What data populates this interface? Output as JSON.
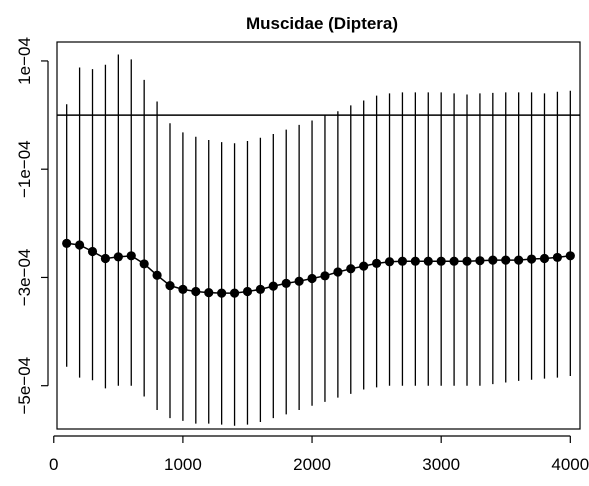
{
  "chart_data": {
    "type": "scatter",
    "title": "Muscidae (Diptera)",
    "xlabel": "",
    "ylabel": "",
    "xlim": [
      25,
      4075
    ],
    "ylim": [
      -0.00058,
      0.000135
    ],
    "grid": false,
    "legend": "none",
    "reference_line_y": 0,
    "x_ticks": [
      {
        "value": 0,
        "label": "0"
      },
      {
        "value": 1000,
        "label": "1000"
      },
      {
        "value": 2000,
        "label": "2000"
      },
      {
        "value": 3000,
        "label": "3000"
      },
      {
        "value": 4000,
        "label": "4000"
      }
    ],
    "y_ticks": [
      {
        "value": 0.0001,
        "label": "1e−04"
      },
      {
        "value": -0.0001,
        "label": "−1e−04"
      },
      {
        "value": -0.0003,
        "label": "−3e−04"
      },
      {
        "value": -0.0005,
        "label": "−5e−04"
      }
    ],
    "x": [
      100,
      200,
      300,
      400,
      500,
      600,
      700,
      800,
      900,
      1000,
      1100,
      1200,
      1300,
      1400,
      1500,
      1600,
      1700,
      1800,
      1900,
      2000,
      2100,
      2200,
      2300,
      2400,
      2500,
      2600,
      2700,
      2800,
      2900,
      3000,
      3100,
      3200,
      3300,
      3400,
      3500,
      3600,
      3700,
      3800,
      3900,
      4000
    ],
    "y": [
      -0.000237,
      -0.00024,
      -0.000252,
      -0.000265,
      -0.000262,
      -0.00026,
      -0.000275,
      -0.000296,
      -0.000315,
      -0.000322,
      -0.000326,
      -0.000328,
      -0.000329,
      -0.000329,
      -0.000326,
      -0.000322,
      -0.000316,
      -0.000311,
      -0.000307,
      -0.000302,
      -0.000297,
      -0.00029,
      -0.000284,
      -0.000279,
      -0.000274,
      -0.000271,
      -0.00027,
      -0.00027,
      -0.00027,
      -0.00027,
      -0.00027,
      -0.00027,
      -0.000269,
      -0.000268,
      -0.000268,
      -0.000268,
      -0.000266,
      -0.000265,
      -0.000263,
      -0.00026
    ],
    "lower": [
      -0.000465,
      -0.000485,
      -0.00049,
      -0.000505,
      -0.0005,
      -0.0005,
      -0.00052,
      -0.000545,
      -0.00056,
      -0.000565,
      -0.00057,
      -0.00057,
      -0.000572,
      -0.000574,
      -0.000572,
      -0.000567,
      -0.00056,
      -0.000553,
      -0.000545,
      -0.000537,
      -0.00053,
      -0.000522,
      -0.000515,
      -0.000507,
      -0.000503,
      -0.0005,
      -0.0005,
      -0.0005,
      -0.0005,
      -0.0005,
      -0.0005,
      -0.0005,
      -0.0005,
      -0.000497,
      -0.000494,
      -0.000491,
      -0.000489,
      -0.000487,
      -0.000485,
      -0.000482
    ],
    "upper": [
      2e-05,
      8.8e-05,
      8.5e-05,
      9.3e-05,
      0.000112,
      0.000103,
      6.5e-05,
      2.5e-05,
      -1.5e-05,
      -3.2e-05,
      -4e-05,
      -4.6e-05,
      -5e-05,
      -5.2e-05,
      -4.8e-05,
      -4.2e-05,
      -3.5e-05,
      -2.7e-05,
      -1.8e-05,
      -1e-05,
      0.0,
      7e-06,
      1.8e-05,
      2.7e-05,
      3.6e-05,
      4e-05,
      4.2e-05,
      4.2e-05,
      4.2e-05,
      4.2e-05,
      4e-05,
      3.8e-05,
      4e-05,
      4.1e-05,
      4.2e-05,
      4.2e-05,
      4.2e-05,
      4e-05,
      4.3e-05,
      4.5e-05
    ]
  }
}
